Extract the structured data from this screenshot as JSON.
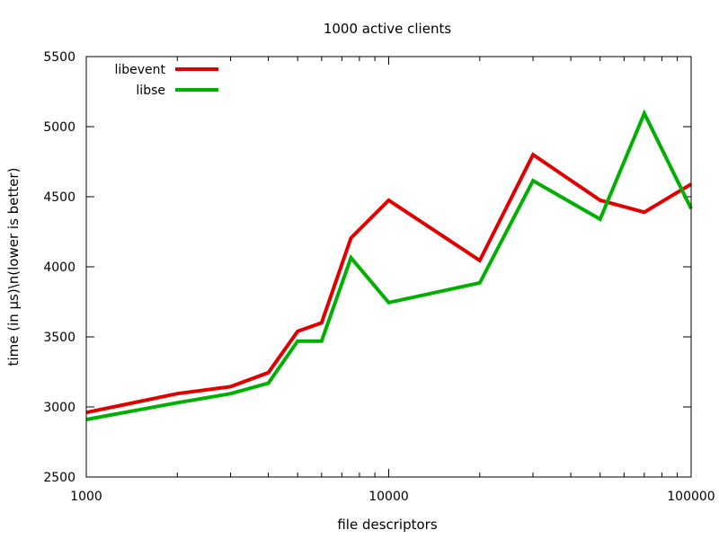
{
  "chart_data": {
    "type": "line",
    "title": "1000 active clients",
    "xlabel": "file descriptors",
    "ylabel": "time (in µs)\\n(lower is better)",
    "x_scale": "log",
    "xlim": [
      1000,
      100000
    ],
    "ylim": [
      2500,
      5500
    ],
    "x_ticks_major": [
      1000,
      10000,
      100000
    ],
    "x_tick_labels": [
      "1000",
      "10000",
      "100000"
    ],
    "y_ticks": [
      2500,
      3000,
      3500,
      4000,
      4500,
      5000,
      5500
    ],
    "y_tick_labels": [
      "2500",
      "3000",
      "3500",
      "4000",
      "4500",
      "5000",
      "5500"
    ],
    "grid": false,
    "legend_position": "top-left",
    "x": [
      1000,
      2000,
      3000,
      4000,
      5000,
      6000,
      7500,
      10000,
      20000,
      30000,
      50000,
      70000,
      100000
    ],
    "series": [
      {
        "name": "libevent",
        "color": "#e00000",
        "values": [
          2960,
          3095,
          3145,
          3245,
          3540,
          3600,
          4205,
          4475,
          4045,
          4800,
          4475,
          4390,
          4590
        ]
      },
      {
        "name": "libse",
        "color": "#00b000",
        "values": [
          2910,
          3030,
          3095,
          3170,
          3470,
          3470,
          4065,
          3745,
          3885,
          4615,
          4340,
          5095,
          4415
        ]
      }
    ]
  }
}
